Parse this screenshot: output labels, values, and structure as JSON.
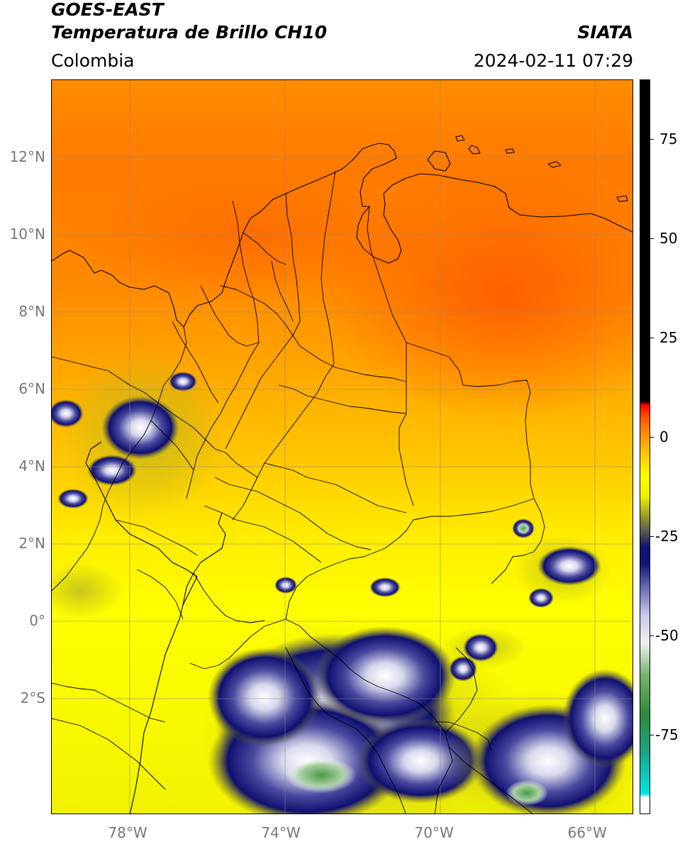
{
  "header": {
    "title_line1": "GOES-EAST",
    "title_line2": "Temperatura de Brillo CH10",
    "region": "Colombia",
    "brand": "SIATA",
    "datetime": "2024-02-11 07:29"
  },
  "map": {
    "lon_range": [
      -80,
      -64.8
    ],
    "lat_range": [
      -5,
      14
    ],
    "lat_ticks": [
      {
        "value": 12,
        "label": "12°N"
      },
      {
        "value": 10,
        "label": "10°N"
      },
      {
        "value": 8,
        "label": "8°N"
      },
      {
        "value": 6,
        "label": "6°N"
      },
      {
        "value": 4,
        "label": "4°N"
      },
      {
        "value": 2,
        "label": "2°N"
      },
      {
        "value": 0,
        "label": "0°"
      },
      {
        "value": -2,
        "label": "2°S"
      }
    ],
    "lon_ticks": [
      {
        "value": -78,
        "label": "78°W"
      },
      {
        "value": -74,
        "label": "74°W"
      },
      {
        "value": -70,
        "label": "70°W"
      },
      {
        "value": -66,
        "label": "66°W"
      }
    ]
  },
  "colorbar": {
    "range": [
      -95,
      90
    ],
    "ticks": [
      {
        "value": 75,
        "label": "75"
      },
      {
        "value": 50,
        "label": "50"
      },
      {
        "value": 25,
        "label": "25"
      },
      {
        "value": 0,
        "label": "0"
      },
      {
        "value": -25,
        "label": "-25"
      },
      {
        "value": -50,
        "label": "-50"
      },
      {
        "value": -75,
        "label": "-75"
      }
    ],
    "stops": [
      {
        "value": -95,
        "color": "#ffffff"
      },
      {
        "value": -91,
        "color": "#ffffff"
      },
      {
        "value": -90,
        "color": "#00e5e5"
      },
      {
        "value": -80,
        "color": "#1aa88a"
      },
      {
        "value": -70,
        "color": "#2e8a3c"
      },
      {
        "value": -60,
        "color": "#77b36e"
      },
      {
        "value": -52,
        "color": "#f0f0f0"
      },
      {
        "value": -45,
        "color": "#c8c8e8"
      },
      {
        "value": -38,
        "color": "#6a6ab8"
      },
      {
        "value": -32,
        "color": "#141478"
      },
      {
        "value": -28,
        "color": "#10106e"
      },
      {
        "value": -24,
        "color": "#555555"
      },
      {
        "value": -20,
        "color": "#9a9a2a"
      },
      {
        "value": -15,
        "color": "#f0f000"
      },
      {
        "value": -10,
        "color": "#ffff00"
      },
      {
        "value": -5,
        "color": "#ffcc00"
      },
      {
        "value": 0,
        "color": "#ff9900"
      },
      {
        "value": 5,
        "color": "#ff5500"
      },
      {
        "value": 8,
        "color": "#ff0000"
      },
      {
        "value": 9,
        "color": "#000000"
      },
      {
        "value": 90,
        "color": "#000000"
      }
    ]
  }
}
